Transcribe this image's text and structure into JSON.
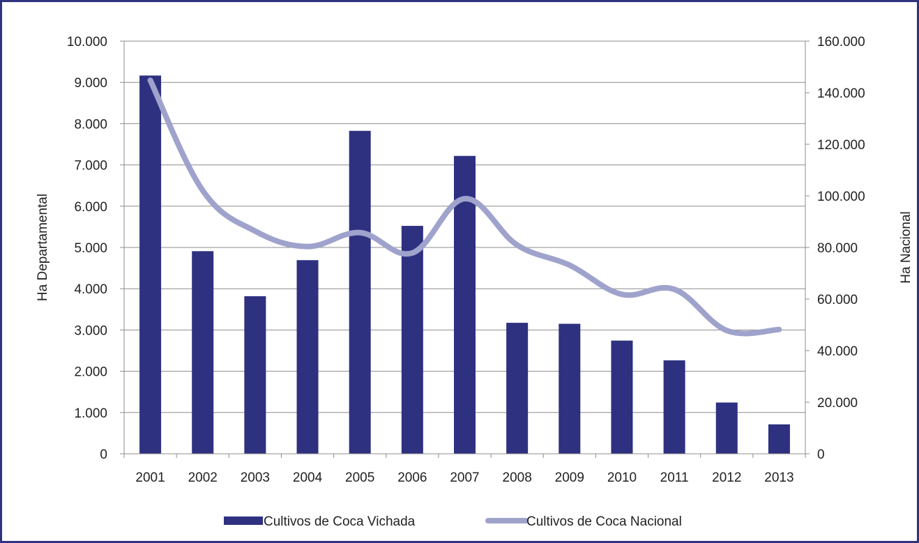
{
  "chart_data": {
    "type": "bar",
    "categories": [
      "2001",
      "2002",
      "2003",
      "2004",
      "2005",
      "2006",
      "2007",
      "2008",
      "2009",
      "2010",
      "2011",
      "2012",
      "2013"
    ],
    "series": [
      {
        "name": "Cultivos de Coca Vichada",
        "type": "bar",
        "axis": "left",
        "color": "#2e3180",
        "values": [
          9166,
          4910,
          3818,
          4692,
          7826,
          5523,
          7218,
          3174,
          3150,
          2743,
          2264,
          1242,
          713
        ]
      },
      {
        "name": "Cultivos de Coca Nacional",
        "type": "line",
        "axis": "right",
        "color": "#9fa3cc",
        "values": [
          144807,
          102071,
          86340,
          80350,
          85750,
          77870,
          98899,
          80953,
          73139,
          61811,
          63762,
          47790,
          48189
        ]
      }
    ],
    "y_left": {
      "label": "Ha Departamental",
      "range": [
        0,
        10000
      ],
      "ticks": [
        0,
        1000,
        2000,
        3000,
        4000,
        5000,
        6000,
        7000,
        8000,
        9000,
        10000
      ],
      "tick_labels": [
        "0",
        "1.000",
        "2.000",
        "3.000",
        "4.000",
        "5.000",
        "6.000",
        "7.000",
        "8.000",
        "9.000",
        "10.000"
      ]
    },
    "y_right": {
      "label": "Ha Nacional",
      "range": [
        0,
        160000
      ],
      "ticks": [
        0,
        20000,
        40000,
        60000,
        80000,
        100000,
        120000,
        140000,
        160000
      ],
      "tick_labels": [
        "0",
        "20.000",
        "40.000",
        "60.000",
        "80.000",
        "100.000",
        "120.000",
        "140.000",
        "160.000"
      ]
    },
    "grid": true,
    "legend_position": "bottom"
  }
}
